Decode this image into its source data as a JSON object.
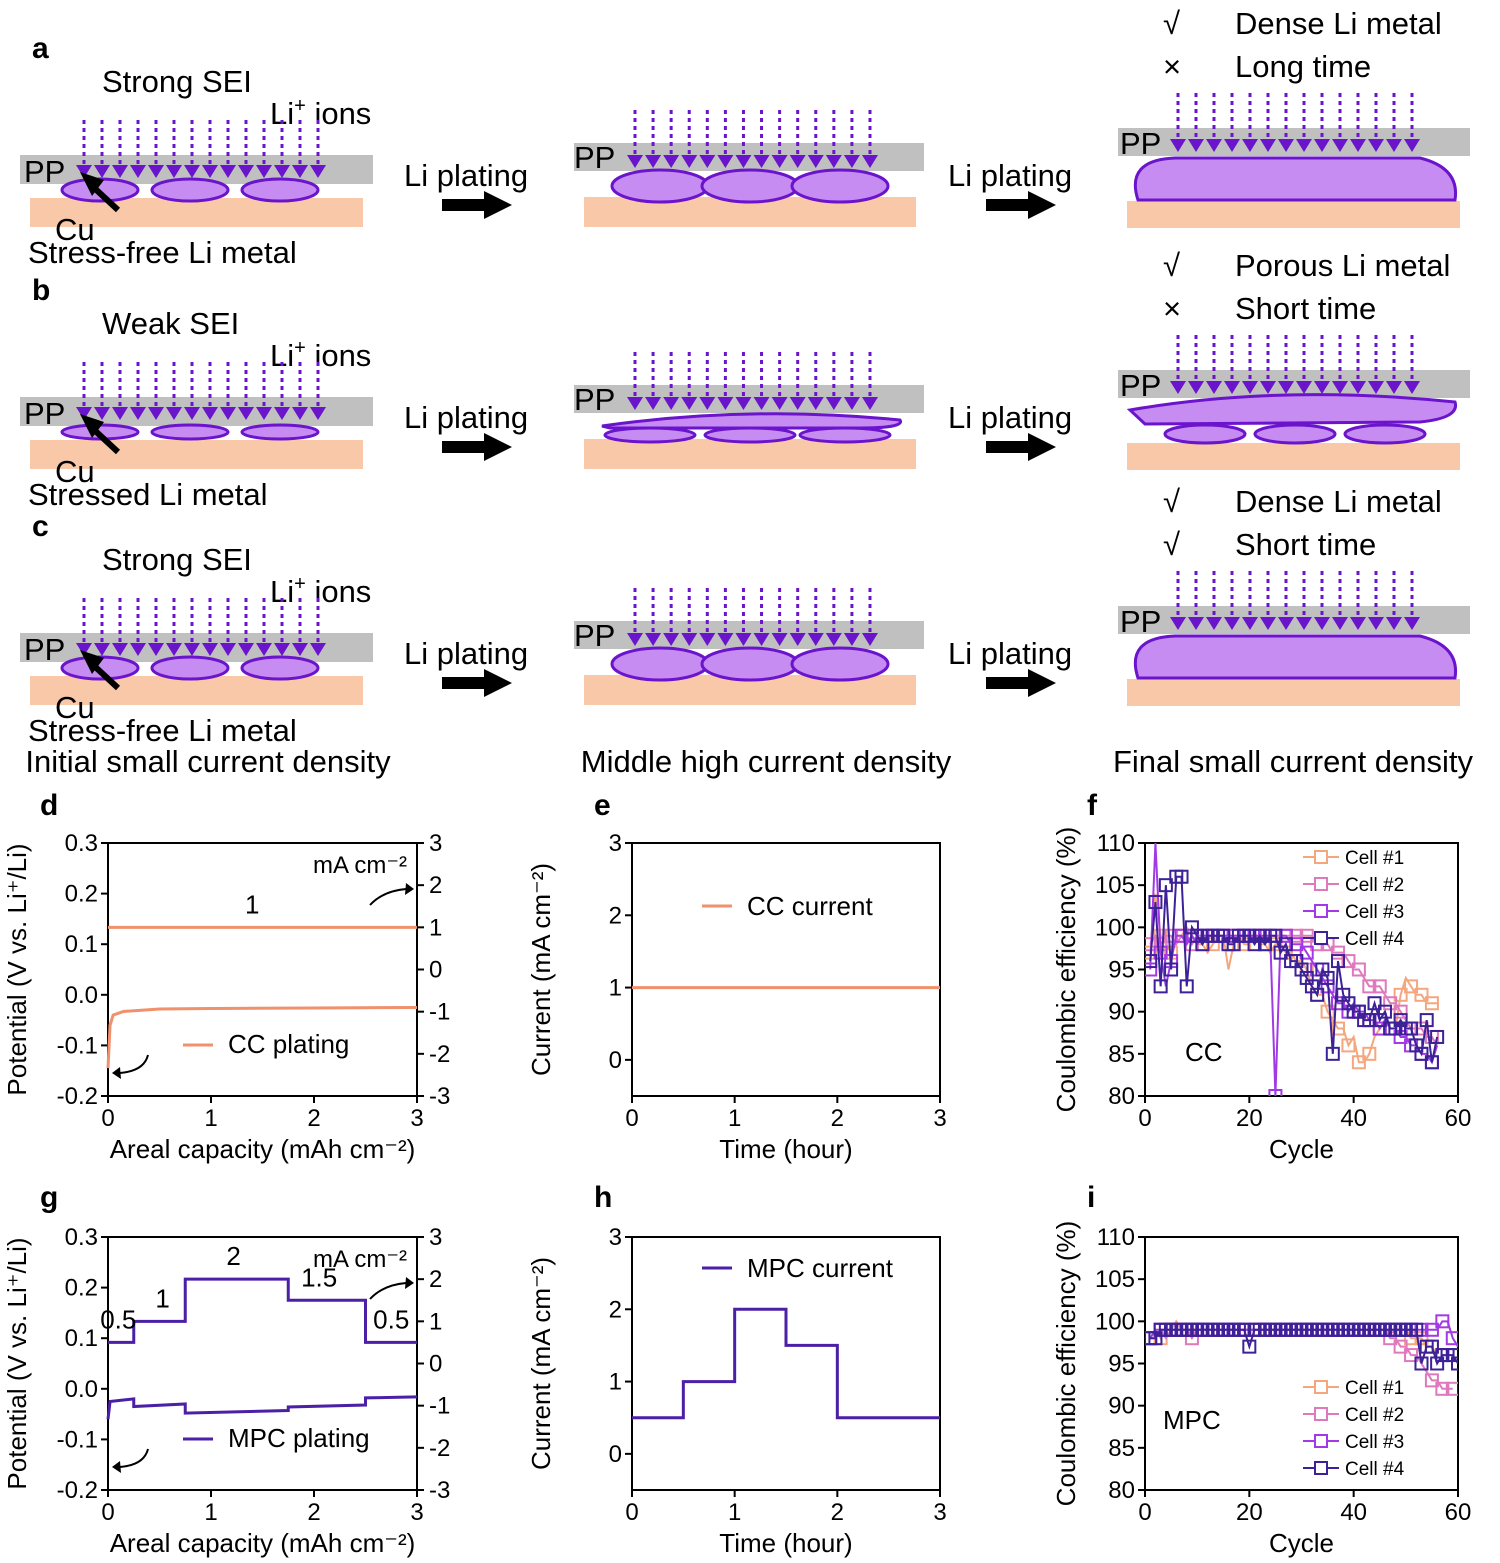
{
  "colors": {
    "pp": "#c0c0c0",
    "cu": "#f8c8a8",
    "li_fill": "#c78cf2",
    "li_edge": "#6a14cc",
    "arrow": "#6a14cc",
    "cc": "#f0906c",
    "mpc": "#4b1fa6",
    "check": "#6a14cc",
    "cross": "#c01616",
    "cells": [
      "#f4a77f",
      "#df79be",
      "#a339e6",
      "#3d2196"
    ]
  },
  "schematic": {
    "panels": [
      {
        "label": "a",
        "sei": "Strong SEI",
        "ions": "Li",
        "ions_sup": "+",
        "ions_rest": " ions",
        "pp": "PP",
        "cu": "Cu",
        "metal": "Stress-free Li metal",
        "porous": false,
        "result": [
          {
            "mark": "√",
            "ok": true,
            "text": "Dense Li metal"
          },
          {
            "mark": "×",
            "ok": false,
            "text": "Long time"
          }
        ]
      },
      {
        "label": "b",
        "sei": "Weak SEI",
        "ions": "Li",
        "ions_sup": "+",
        "ions_rest": " ions",
        "pp": "PP",
        "cu": "Cu",
        "metal": "Stressed Li metal",
        "porous": true,
        "result": [
          {
            "mark": "√",
            "ok": true,
            "text": "Porous Li metal"
          },
          {
            "mark": "×",
            "ok": false,
            "text": "Short time"
          }
        ]
      },
      {
        "label": "c",
        "sei": "Strong SEI",
        "ions": "Li",
        "ions_sup": "+",
        "ions_rest": " ions",
        "pp": "PP",
        "cu": "Cu",
        "metal": "Stress-free Li metal",
        "porous": false,
        "result": [
          {
            "mark": "√",
            "ok": true,
            "text": "Dense Li metal"
          },
          {
            "mark": "√",
            "ok": true,
            "text": "Short time"
          }
        ]
      }
    ],
    "step_label": "Li plating",
    "stages": [
      "Initial small current density",
      "Middle high current density",
      "Final small current density"
    ]
  },
  "chart_data": [
    {
      "id": "d",
      "type": "line",
      "xlabel": "Areal capacity (mAh cm⁻²)",
      "ylabel": "Potential (V vs. Li⁺/Li)",
      "y2label": "mA cm⁻²",
      "xlim": [
        0,
        3
      ],
      "ylim": [
        -0.2,
        0.3
      ],
      "y2lim": [
        -3,
        3
      ],
      "xticks": [
        0,
        1,
        2,
        3
      ],
      "yticks": [
        -0.2,
        -0.1,
        0.0,
        0.1,
        0.2,
        0.3
      ],
      "y2ticks": [
        -3,
        -2,
        -1,
        0,
        1,
        2,
        3
      ],
      "legend": "CC plating",
      "step_labels": [
        {
          "x": 1.4,
          "text": "1"
        }
      ],
      "current_steps": [
        [
          0,
          1
        ],
        [
          3,
          1
        ]
      ],
      "potential": [
        [
          0,
          -0.145
        ],
        [
          0.02,
          -0.06
        ],
        [
          0.05,
          -0.04
        ],
        [
          0.15,
          -0.033
        ],
        [
          0.5,
          -0.028
        ],
        [
          1,
          -0.027
        ],
        [
          2,
          -0.026
        ],
        [
          3,
          -0.025
        ]
      ]
    },
    {
      "id": "e",
      "type": "line",
      "xlabel": "Time (hour)",
      "ylabel": "Current (mA cm⁻²)",
      "xlim": [
        0,
        3
      ],
      "ylim": [
        -0.5,
        3
      ],
      "xticks": [
        0,
        1,
        2,
        3
      ],
      "yticks": [
        0,
        1,
        2,
        3
      ],
      "legend": "CC current",
      "series": [
        [
          0,
          1
        ],
        [
          3,
          1
        ]
      ]
    },
    {
      "id": "f",
      "type": "scatter",
      "xlabel": "Cycle",
      "ylabel": "Coulombic efficiency (%)",
      "xlim": [
        0,
        60
      ],
      "ylim": [
        80,
        110
      ],
      "xticks": [
        0,
        20,
        40,
        60
      ],
      "yticks": [
        80,
        85,
        90,
        95,
        100,
        105,
        110
      ],
      "annotation": "CC",
      "legend": [
        "Cell #1",
        "Cell #2",
        "Cell #3",
        "Cell #4"
      ],
      "series": [
        {
          "name": "Cell #1",
          "values": [
            97,
            104,
            99,
            98,
            97,
            99,
            99,
            100,
            99,
            98,
            98,
            97,
            98,
            99,
            99,
            95,
            98,
            99,
            98,
            98,
            99,
            98,
            98,
            97,
            98,
            98,
            97,
            97,
            96,
            96,
            95,
            93,
            92,
            92,
            90,
            89,
            88,
            88,
            86,
            87,
            84,
            84,
            85,
            87,
            88,
            89,
            88,
            88,
            92,
            94,
            93,
            92,
            92,
            91,
            91,
            91
          ]
        },
        {
          "name": "Cell #2",
          "values": [
            98,
            99,
            98,
            99,
            99,
            98,
            99,
            99,
            98,
            99,
            99,
            99,
            99,
            99,
            99,
            99,
            99,
            99,
            99,
            99,
            99,
            99,
            99,
            99,
            99,
            99,
            99,
            99,
            99,
            99,
            99,
            99,
            98,
            98,
            98,
            97,
            97,
            97,
            96,
            95,
            95,
            94,
            93,
            93,
            93,
            92,
            91,
            91,
            90,
            89,
            88,
            88,
            88,
            87,
            87,
            86
          ]
        },
        {
          "name": "Cell #3",
          "values": [
            95,
            110,
            97,
            93,
            96,
            99,
            99,
            98,
            99,
            98,
            99,
            99,
            99,
            99,
            99,
            99,
            99,
            99,
            99,
            99,
            99,
            99,
            99,
            99,
            80,
            99,
            99,
            98,
            98,
            98,
            97,
            96,
            95,
            94,
            93,
            92,
            91,
            91,
            90,
            91,
            90,
            90,
            89,
            89,
            88,
            89,
            88,
            88,
            87,
            87,
            86,
            86,
            85,
            85,
            84,
            86
          ]
        },
        {
          "name": "Cell #4",
          "values": [
            96,
            103,
            93,
            105,
            95,
            106,
            106,
            93,
            100,
            99,
            98,
            99,
            99,
            99,
            99,
            98,
            98,
            99,
            99,
            99,
            98,
            99,
            98,
            99,
            99,
            97,
            98,
            96,
            96,
            95,
            94,
            93,
            92,
            95,
            94,
            85,
            96,
            92,
            91,
            90,
            90,
            89,
            89,
            91,
            89,
            90,
            88,
            88,
            89,
            88,
            88,
            86,
            85,
            89,
            84,
            87
          ]
        }
      ]
    },
    {
      "id": "g",
      "type": "line",
      "xlabel": "Areal capacity (mAh cm⁻²)",
      "ylabel": "Potential (V vs. Li⁺/Li)",
      "y2label": "mA cm⁻²",
      "xlim": [
        0,
        3
      ],
      "ylim": [
        -0.2,
        0.3
      ],
      "y2lim": [
        -3,
        3
      ],
      "xticks": [
        0,
        1,
        2,
        3
      ],
      "yticks": [
        -0.2,
        -0.1,
        0.0,
        0.1,
        0.2,
        0.3
      ],
      "y2ticks": [
        -3,
        -2,
        -1,
        0,
        1,
        2,
        3
      ],
      "legend": "MPC plating",
      "step_labels": [
        {
          "x": 0.1,
          "text": "0.5"
        },
        {
          "x": 0.53,
          "text": "1"
        },
        {
          "x": 1.22,
          "text": "2"
        },
        {
          "x": 2.05,
          "text": "1.5"
        },
        {
          "x": 2.75,
          "text": "0.5"
        }
      ],
      "current_steps": [
        [
          0,
          0.5
        ],
        [
          0.25,
          0.5
        ],
        [
          0.25,
          1
        ],
        [
          0.75,
          1
        ],
        [
          0.75,
          2
        ],
        [
          1.75,
          2
        ],
        [
          1.75,
          1.5
        ],
        [
          2.5,
          1.5
        ],
        [
          2.5,
          0.5
        ],
        [
          3,
          0.5
        ]
      ],
      "potential": [
        [
          0,
          -0.06
        ],
        [
          0.02,
          -0.025
        ],
        [
          0.25,
          -0.02
        ],
        [
          0.25,
          -0.035
        ],
        [
          0.75,
          -0.03
        ],
        [
          0.75,
          -0.048
        ],
        [
          1.75,
          -0.043
        ],
        [
          1.75,
          -0.036
        ],
        [
          2.5,
          -0.032
        ],
        [
          2.5,
          -0.018
        ],
        [
          3,
          -0.016
        ]
      ]
    },
    {
      "id": "h",
      "type": "line",
      "xlabel": "Time (hour)",
      "ylabel": "Current (mA cm⁻²)",
      "xlim": [
        0,
        3
      ],
      "ylim": [
        -0.5,
        3
      ],
      "xticks": [
        0,
        1,
        2,
        3
      ],
      "yticks": [
        0,
        1,
        2,
        3
      ],
      "legend": "MPC current",
      "series": [
        [
          0,
          0.5
        ],
        [
          0.5,
          0.5
        ],
        [
          0.5,
          1
        ],
        [
          1,
          1
        ],
        [
          1,
          2
        ],
        [
          1.5,
          2
        ],
        [
          1.5,
          1.5
        ],
        [
          2,
          1.5
        ],
        [
          2,
          0.5
        ],
        [
          3,
          0.5
        ]
      ]
    },
    {
      "id": "i",
      "type": "scatter",
      "xlabel": "Cycle",
      "ylabel": "Coulombic efficiency (%)",
      "xlim": [
        0,
        60
      ],
      "ylim": [
        80,
        110
      ],
      "xticks": [
        0,
        20,
        40,
        60
      ],
      "yticks": [
        80,
        85,
        90,
        95,
        100,
        105,
        110
      ],
      "annotation": "MPC",
      "legend": [
        "Cell #1",
        "Cell #2",
        "Cell #3",
        "Cell #4"
      ],
      "series": [
        {
          "name": "Cell #1",
          "values": [
            98,
            99,
            98,
            99,
            99,
            100,
            99,
            99,
            99,
            99,
            99,
            99,
            99,
            99,
            99,
            99,
            99,
            99,
            99,
            99,
            99,
            99,
            99,
            99,
            99,
            99,
            99,
            99,
            99,
            99,
            99,
            99,
            99,
            99,
            99,
            99,
            99,
            99,
            99,
            99,
            99,
            99,
            99,
            99,
            99,
            99,
            99,
            99,
            99,
            99,
            98,
            98,
            98,
            97,
            97,
            96
          ]
        },
        {
          "name": "Cell #2",
          "values": [
            98,
            98,
            99,
            98,
            99,
            99,
            99,
            99,
            98,
            99,
            99,
            99,
            99,
            99,
            99,
            99,
            99,
            99,
            99,
            99,
            99,
            99,
            99,
            99,
            99,
            99,
            99,
            99,
            99,
            99,
            99,
            99,
            99,
            99,
            99,
            99,
            99,
            99,
            99,
            99,
            99,
            99,
            99,
            99,
            99,
            99,
            98,
            98,
            97,
            97,
            96,
            96,
            95,
            94,
            93,
            93,
            92,
            92,
            92
          ]
        },
        {
          "name": "Cell #3",
          "values": [
            98,
            99,
            99,
            99,
            99,
            99,
            99,
            99,
            99,
            99,
            99,
            99,
            99,
            99,
            99,
            99,
            99,
            99,
            99,
            99,
            99,
            99,
            99,
            99,
            99,
            99,
            99,
            99,
            99,
            99,
            99,
            99,
            99,
            99,
            99,
            99,
            99,
            99,
            99,
            99,
            99,
            99,
            99,
            99,
            99,
            99,
            99,
            99,
            99,
            99,
            99,
            99,
            99,
            99,
            99,
            99,
            100,
            100,
            98,
            97
          ]
        },
        {
          "name": "Cell #4",
          "values": [
            98,
            98,
            99,
            99,
            99,
            99,
            99,
            99,
            99,
            99,
            99,
            99,
            99,
            99,
            99,
            99,
            99,
            99,
            99,
            97,
            99,
            99,
            99,
            99,
            99,
            99,
            99,
            99,
            99,
            99,
            99,
            99,
            99,
            99,
            99,
            99,
            99,
            99,
            99,
            99,
            99,
            99,
            99,
            99,
            99,
            99,
            99,
            99,
            99,
            99,
            99,
            99,
            95,
            97,
            97,
            95,
            96,
            96,
            96,
            95
          ]
        }
      ]
    }
  ]
}
